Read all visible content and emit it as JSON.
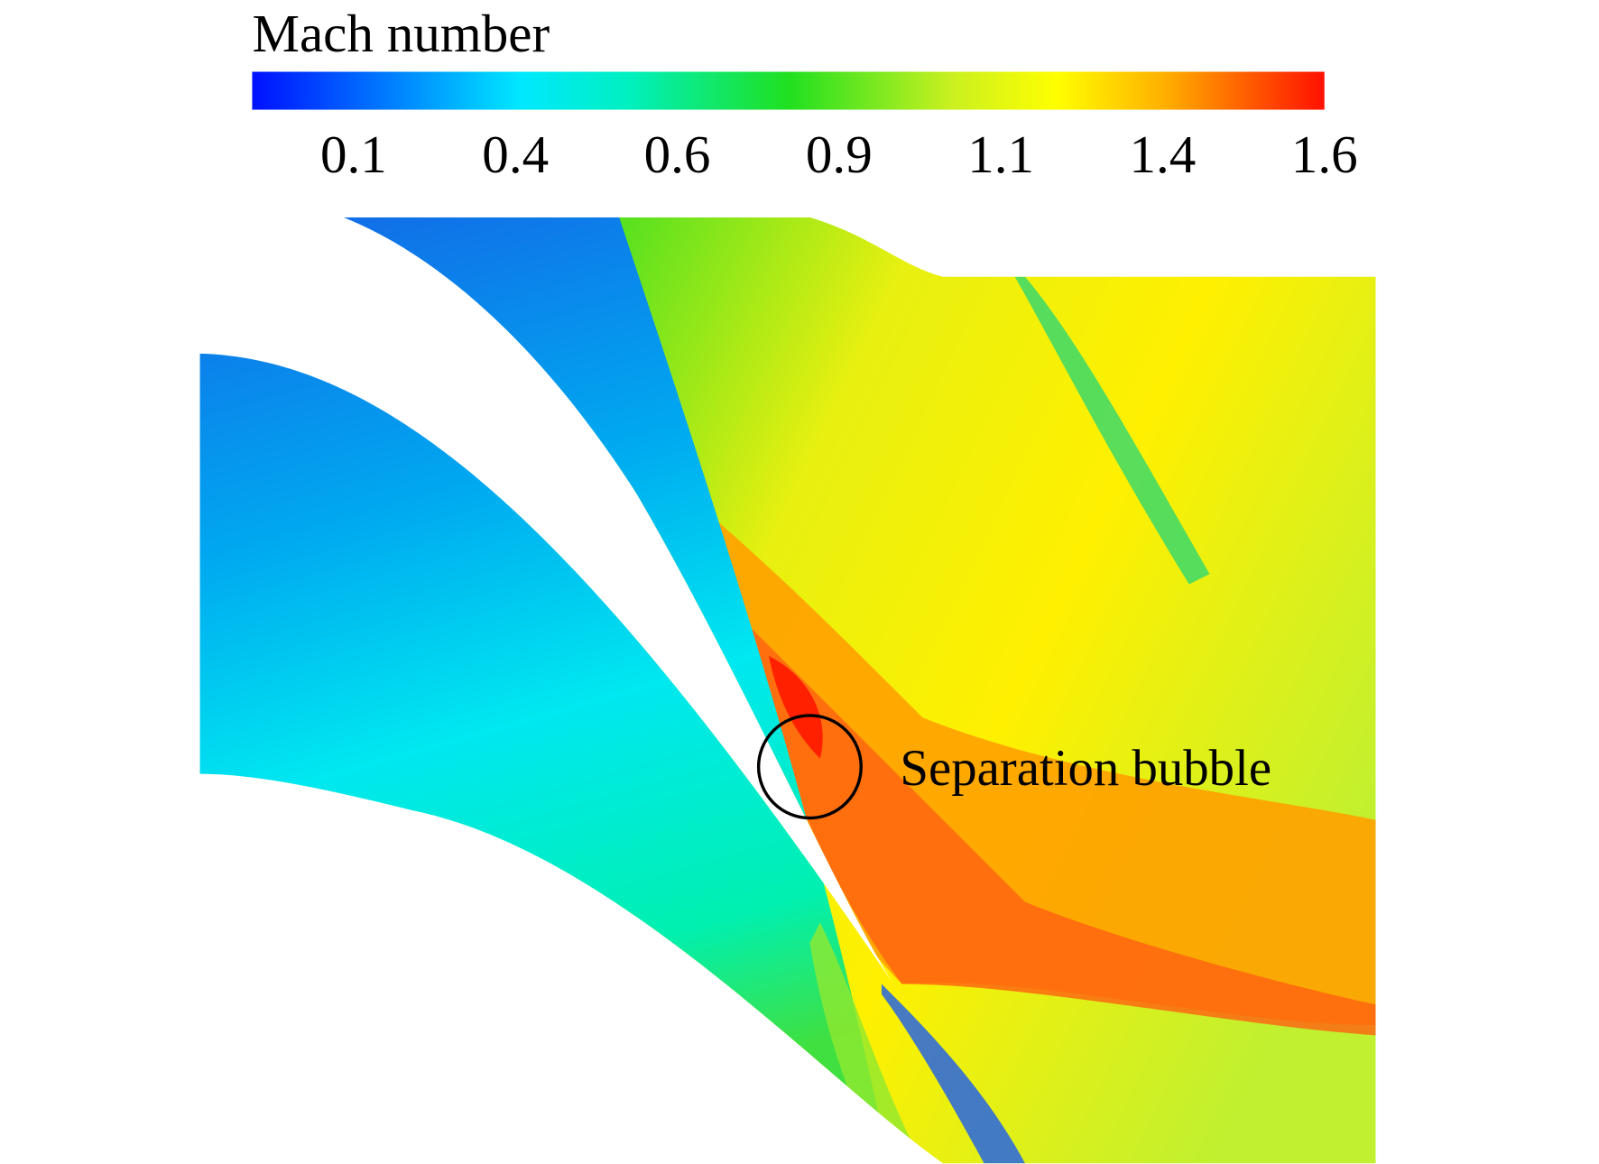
{
  "colorbar": {
    "title": "Mach number",
    "ticks": [
      "0.1",
      "0.4",
      "0.6",
      "0.9",
      "1.1",
      "1.4",
      "1.6"
    ]
  },
  "annotation": "Separation bubble"
}
